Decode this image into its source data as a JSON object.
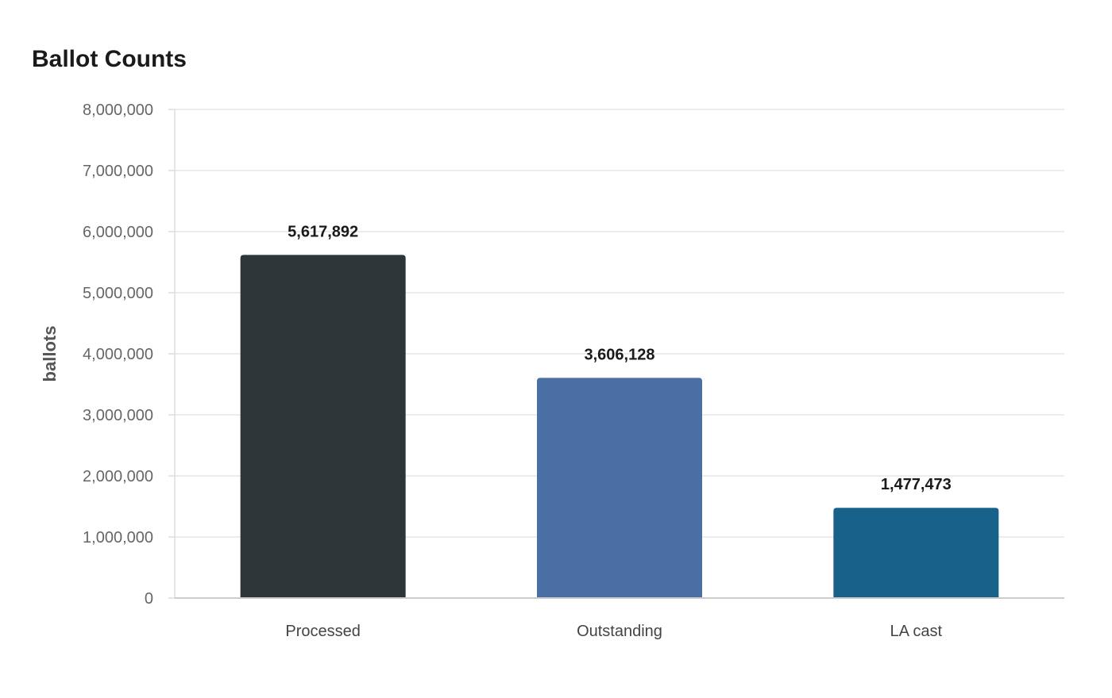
{
  "chart_data": {
    "type": "bar",
    "title": "Ballot Counts",
    "xlabel": "",
    "ylabel": "ballots",
    "categories": [
      "Processed",
      "Outstanding",
      "LA cast"
    ],
    "values": [
      5617892,
      3606128,
      1477473
    ],
    "value_labels": [
      "5,617,892",
      "3,606,128",
      "1,477,473"
    ],
    "colors": [
      "#2e3538",
      "#4a6fa5",
      "#17618a"
    ],
    "ylim": [
      0,
      8000000
    ],
    "yticks": [
      0,
      1000000,
      2000000,
      3000000,
      4000000,
      5000000,
      6000000,
      7000000,
      8000000
    ],
    "ytick_labels": [
      "0",
      "1,000,000",
      "2,000,000",
      "3,000,000",
      "4,000,000",
      "5,000,000",
      "6,000,000",
      "7,000,000",
      "8,000,000"
    ],
    "grid": true,
    "legend": "none"
  }
}
